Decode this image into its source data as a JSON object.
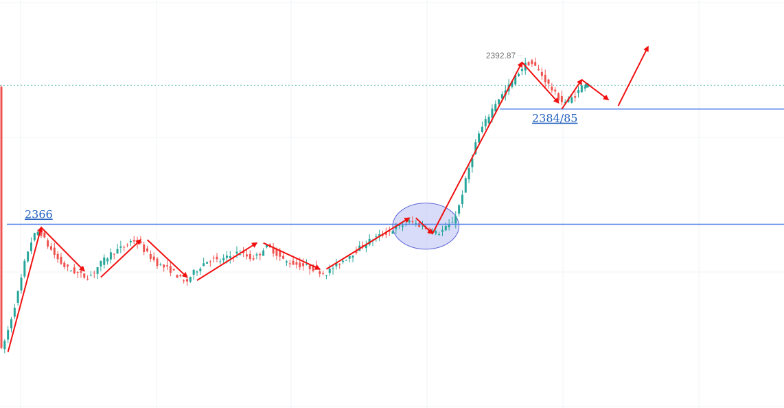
{
  "chart_data": {
    "type": "candlestick",
    "title": "",
    "xlabel": "",
    "ylabel": "",
    "ylim": [
      2336.5,
      2402
    ],
    "xlim": [
      0,
      118
    ],
    "grid": true,
    "high_marker": {
      "label": "2392.87",
      "value": 2392.87,
      "x": 79
    },
    "current_price": {
      "value": 2388.3,
      "color": "#26a69a"
    },
    "levels": [
      {
        "label": "2366",
        "value": 2366,
        "color": "#4d7ee8"
      },
      {
        "label": "2384/85",
        "value": 2384.5,
        "color": "#4d7ee8"
      }
    ],
    "consolidation_zone": {
      "x": 64,
      "y": 2365.7,
      "rx": 5,
      "ry": 3.7,
      "color": "#b9bff2"
    },
    "price_path": [
      [
        0,
        2345.0
      ],
      [
        1,
        2348.0
      ],
      [
        2,
        2352.0
      ],
      [
        3,
        2356.0
      ],
      [
        4,
        2361.0
      ],
      [
        5,
        2364.0
      ],
      [
        6,
        2365.0
      ],
      [
        7,
        2363.0
      ],
      [
        8,
        2361.5
      ],
      [
        9,
        2360.0
      ],
      [
        10,
        2359.0
      ],
      [
        11,
        2358.5
      ],
      [
        12,
        2358.0
      ],
      [
        13,
        2357.5
      ],
      [
        14,
        2358.0
      ],
      [
        15,
        2359.5
      ],
      [
        16,
        2360.5
      ],
      [
        17,
        2361.5
      ],
      [
        18,
        2362.0
      ],
      [
        19,
        2362.5
      ],
      [
        20,
        2363.5
      ],
      [
        21,
        2363.0
      ],
      [
        22,
        2361.5
      ],
      [
        23,
        2360.5
      ],
      [
        24,
        2359.5
      ],
      [
        25,
        2359.0
      ],
      [
        26,
        2358.5
      ],
      [
        27,
        2357.5
      ],
      [
        28,
        2356.5
      ],
      [
        29,
        2358.0
      ],
      [
        30,
        2359.0
      ],
      [
        31,
        2360.0
      ],
      [
        32,
        2360.5
      ],
      [
        33,
        2360.0
      ],
      [
        34,
        2360.5
      ],
      [
        35,
        2361.0
      ],
      [
        36,
        2361.5
      ],
      [
        37,
        2361.0
      ],
      [
        38,
        2360.5
      ],
      [
        39,
        2361.0
      ],
      [
        40,
        2362.5
      ],
      [
        41,
        2362.0
      ],
      [
        42,
        2361.0
      ],
      [
        43,
        2360.0
      ],
      [
        44,
        2359.8
      ],
      [
        45,
        2359.5
      ],
      [
        46,
        2359.3
      ],
      [
        47,
        2359.0
      ],
      [
        48,
        2358.6
      ],
      [
        49,
        2358.0
      ],
      [
        50,
        2358.8
      ],
      [
        51,
        2359.6
      ],
      [
        52,
        2360.4
      ],
      [
        53,
        2361.2
      ],
      [
        54,
        2362.0
      ],
      [
        55,
        2362.8
      ],
      [
        56,
        2363.5
      ],
      [
        57,
        2364.0
      ],
      [
        58,
        2364.5
      ],
      [
        59,
        2365.0
      ],
      [
        60,
        2365.5
      ],
      [
        61,
        2366.0
      ],
      [
        62,
        2366.5
      ],
      [
        63,
        2366.0
      ],
      [
        64,
        2365.5
      ],
      [
        65,
        2365.0
      ],
      [
        66,
        2364.5
      ],
      [
        67,
        2365.2
      ],
      [
        68,
        2366.0
      ],
      [
        69,
        2368.0
      ],
      [
        70,
        2372.0
      ],
      [
        71,
        2376.0
      ],
      [
        72,
        2380.0
      ],
      [
        73,
        2382.0
      ],
      [
        74,
        2384.0
      ],
      [
        75,
        2386.0
      ],
      [
        76,
        2387.0
      ],
      [
        77,
        2388.5
      ],
      [
        78,
        2390.0
      ],
      [
        79,
        2391.5
      ],
      [
        80,
        2392.0
      ],
      [
        81,
        2391.0
      ],
      [
        82,
        2389.5
      ],
      [
        83,
        2388.0
      ],
      [
        84,
        2386.5
      ],
      [
        85,
        2385.5
      ],
      [
        86,
        2386.0
      ],
      [
        87,
        2387.0
      ],
      [
        88,
        2388.5
      ]
    ],
    "arrows": [
      {
        "from": [
          1,
          2345.5
        ],
        "to": [
          6,
          2365.5
        ]
      },
      {
        "from": [
          6,
          2365.5
        ],
        "to": [
          12.5,
          2358.5
        ]
      },
      {
        "from": [
          15,
          2357.5
        ],
        "to": [
          21,
          2363.5
        ]
      },
      {
        "from": [
          22,
          2363.5
        ],
        "to": [
          28,
          2357.5
        ]
      },
      {
        "from": [
          29.5,
          2357.0
        ],
        "to": [
          38.5,
          2363.0
        ]
      },
      {
        "from": [
          39.5,
          2363.0
        ],
        "to": [
          48,
          2358.8
        ]
      },
      {
        "from": [
          49,
          2358.8
        ],
        "to": [
          61.5,
          2367.0
        ]
      },
      {
        "from": [
          62.5,
          2367.0
        ],
        "to": [
          65,
          2364.5
        ]
      },
      {
        "from": [
          65,
          2364.5
        ],
        "to": [
          78.5,
          2392.0
        ]
      },
      {
        "from": [
          78.5,
          2392.0
        ],
        "to": [
          84,
          2385.5
        ]
      },
      {
        "from": [
          84.5,
          2384.5
        ],
        "to": [
          87.5,
          2389.2
        ]
      },
      {
        "from": [
          87.5,
          2389.2
        ],
        "to": [
          91.5,
          2386.0
        ]
      },
      {
        "from": [
          93,
          2385.0
        ],
        "to": [
          97.5,
          2394.5
        ]
      }
    ]
  }
}
